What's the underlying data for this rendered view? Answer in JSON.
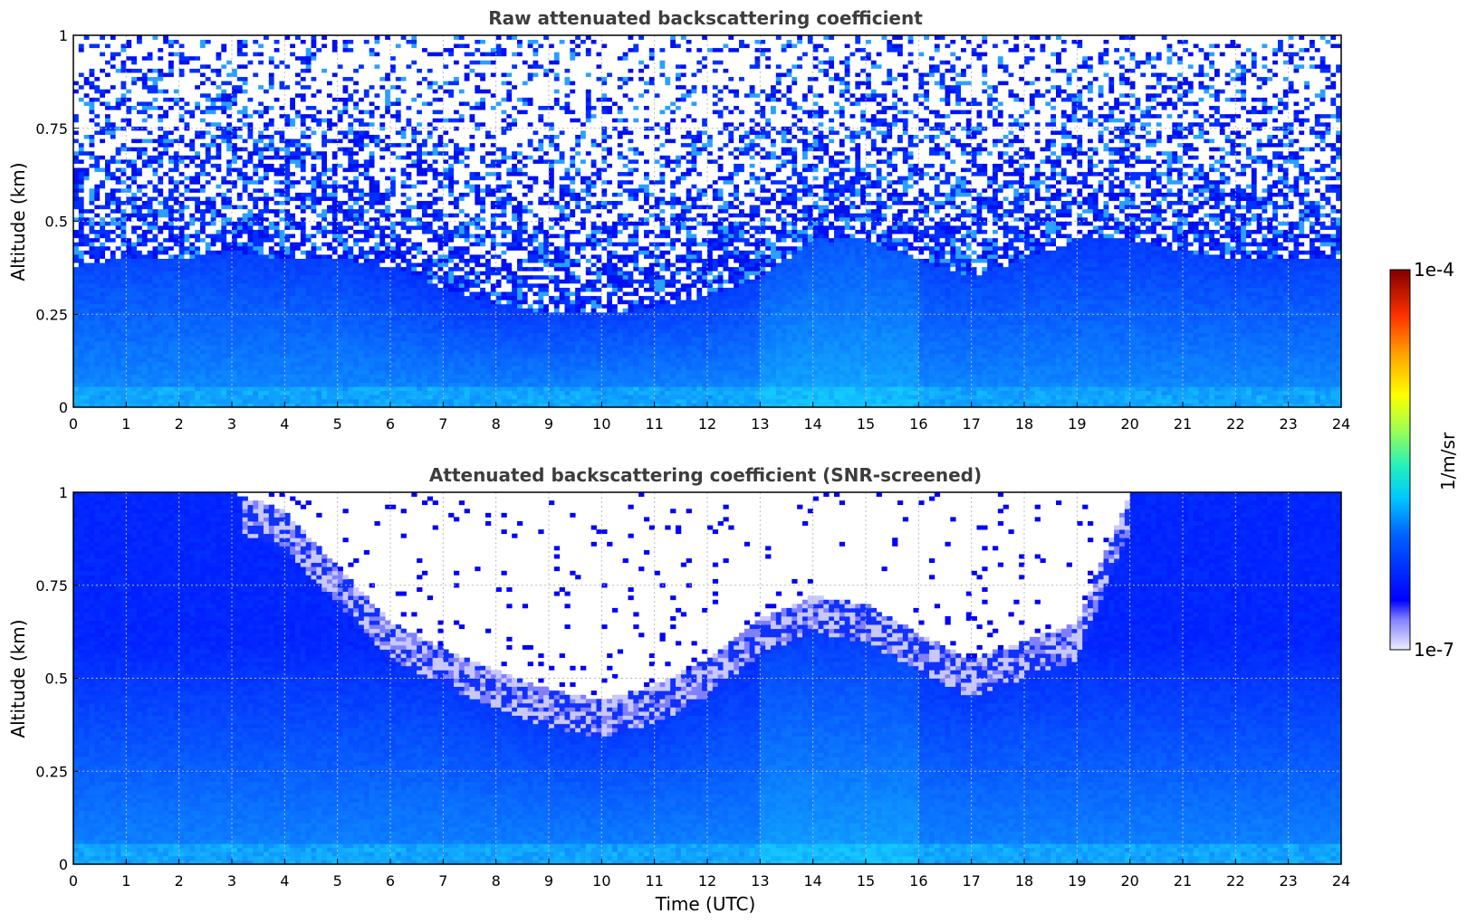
{
  "chart_data": [
    {
      "type": "heatmap",
      "title": "Raw attenuated backscattering coefficient",
      "xlabel": "",
      "ylabel": "Altitude (km)",
      "xlim": [
        0,
        24
      ],
      "ylim": [
        0,
        1
      ],
      "xticks": [
        "0",
        "1",
        "2",
        "3",
        "4",
        "5",
        "6",
        "7",
        "8",
        "9",
        "10",
        "11",
        "12",
        "13",
        "14",
        "15",
        "16",
        "17",
        "18",
        "19",
        "20",
        "21",
        "22",
        "23",
        "24"
      ],
      "yticks": [
        "0",
        "0.25",
        "0.5",
        "0.75",
        "1"
      ],
      "grid": true,
      "screened": false,
      "noise_onset_km_by_hour": [
        0.38,
        0.4,
        0.4,
        0.42,
        0.4,
        0.4,
        0.38,
        0.32,
        0.28,
        0.25,
        0.25,
        0.27,
        0.3,
        0.35,
        0.45,
        0.45,
        0.4,
        0.35,
        0.4,
        0.45,
        0.45,
        0.42,
        0.4,
        0.4,
        0.4
      ],
      "aerosol_layer_top_km_by_hour": [
        0.5,
        0.52,
        0.52,
        0.5,
        0.48,
        0.48,
        0.4,
        0.34,
        0.3,
        0.3,
        0.3,
        0.32,
        0.35,
        0.4,
        0.5,
        0.52,
        0.5,
        0.45,
        0.48,
        0.5,
        0.5,
        0.5,
        0.48,
        0.48,
        0.48
      ]
    },
    {
      "type": "heatmap",
      "title": "Attenuated backscattering coefficient (SNR-screened)",
      "xlabel": "Time (UTC)",
      "ylabel": "Altitude (km)",
      "xlim": [
        0,
        24
      ],
      "ylim": [
        0,
        1
      ],
      "xticks": [
        "0",
        "1",
        "2",
        "3",
        "4",
        "5",
        "6",
        "7",
        "8",
        "9",
        "10",
        "11",
        "12",
        "13",
        "14",
        "15",
        "16",
        "17",
        "18",
        "19",
        "20",
        "21",
        "22",
        "23",
        "24"
      ],
      "yticks": [
        "0",
        "0.25",
        "0.5",
        "0.75",
        "1"
      ],
      "grid": true,
      "screened": true,
      "valid_data_top_km_by_hour": [
        1.0,
        1.0,
        1.0,
        1.0,
        0.95,
        0.8,
        0.65,
        0.58,
        0.52,
        0.47,
        0.44,
        0.48,
        0.55,
        0.66,
        0.72,
        0.7,
        0.62,
        0.55,
        0.6,
        0.65,
        1.0,
        1.0,
        1.0,
        1.0,
        1.0
      ]
    }
  ],
  "colorbar": {
    "label": "1/m/sr",
    "min_label": "1e-7",
    "max_label": "1e-4",
    "scale": "log",
    "range": [
      1e-07,
      0.0001
    ],
    "colormap": "jet"
  }
}
